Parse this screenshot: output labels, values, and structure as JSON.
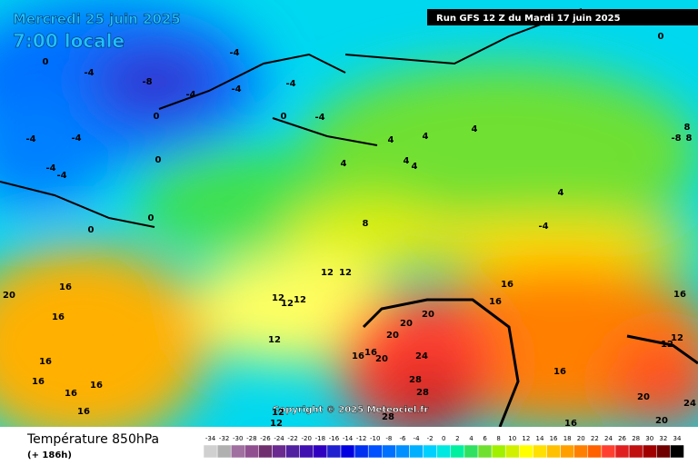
{
  "header": {
    "date": "Mercredi 25 juin 2025",
    "time": "7:00 locale",
    "run": "Run GFS 12 Z du Mardi 17 juin 2025"
  },
  "copyright": "Copyright © 2025 Meteociel.fr",
  "footer": {
    "title": "Température 850hPa",
    "subtitle": "(+ 186h)"
  },
  "legend": {
    "ticks": [
      -34,
      -32,
      -30,
      -28,
      -26,
      -24,
      -22,
      -20,
      -18,
      -16,
      -14,
      -12,
      -10,
      -8,
      -6,
      -4,
      -2,
      0,
      2,
      4,
      6,
      8,
      10,
      12,
      14,
      16,
      18,
      20,
      22,
      24,
      26,
      28,
      30,
      32,
      34
    ],
    "colors": [
      "#d0d0d0",
      "#b0b0b0",
      "#a070a0",
      "#905090",
      "#703070",
      "#6a2a90",
      "#5020a0",
      "#4010b0",
      "#3000c0",
      "#2020d0",
      "#0000e0",
      "#0030f0",
      "#0050ff",
      "#0070ff",
      "#0090ff",
      "#00b0ff",
      "#00d0ff",
      "#00e8e0",
      "#00f0a0",
      "#30e060",
      "#70e030",
      "#a0f000",
      "#d0f000",
      "#ffff00",
      "#ffe000",
      "#ffc000",
      "#ffa000",
      "#ff8000",
      "#ff6000",
      "#ff4030",
      "#e02020",
      "#c01010",
      "#a00000",
      "#700000",
      "#000000"
    ]
  },
  "contour_labels": [
    -8,
    -4,
    -4,
    -4,
    -4,
    -4,
    -4,
    0,
    0,
    0,
    0,
    -4,
    -4,
    -4,
    -4,
    0,
    0,
    0,
    4,
    4,
    4,
    4,
    4,
    4,
    4,
    -4,
    8,
    8,
    -8,
    8,
    12,
    12,
    12,
    12,
    12,
    12,
    16,
    16,
    16,
    16,
    16,
    16,
    16,
    16,
    16,
    16,
    16,
    16,
    16,
    16,
    20,
    20,
    20,
    20,
    20,
    20,
    20,
    24,
    24,
    28,
    28,
    28,
    12,
    12,
    12,
    12
  ]
}
